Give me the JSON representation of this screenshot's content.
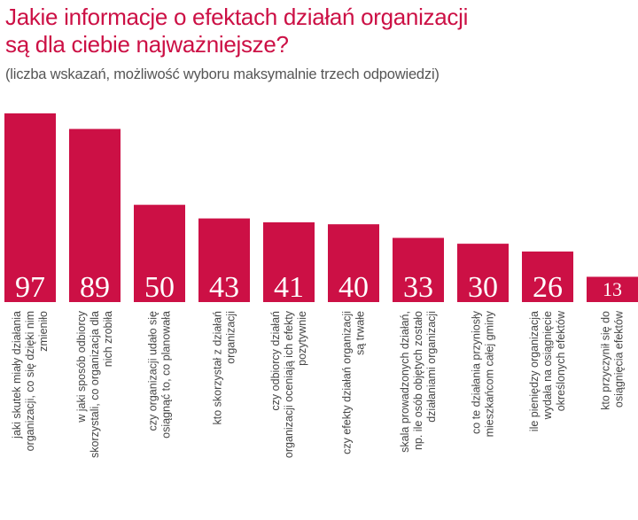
{
  "chart_data": {
    "type": "bar",
    "title": "Jakie informacje o efektach działań organizacji są dla ciebie najważniejsze?",
    "title_lines": [
      "Jakie informacje o efektach działań organizacji",
      "są dla ciebie najważniejsze?"
    ],
    "subtitle": "(liczba wskazań, możliwość wyboru maksymalnie trzech odpowiedzi)",
    "xlabel": "",
    "ylabel": "",
    "ylim": [
      0,
      100
    ],
    "grid": false,
    "legend": "none",
    "bar_color": "#cc1045",
    "categories": [
      [
        "jaki skutek miały działania",
        "organizacji, co się dzięki nim",
        "zmieniło"
      ],
      [
        "w jaki sposób odbiorcy",
        "skorzystali, co organizacja dla",
        "nich zrobiła"
      ],
      [
        "czy organizacji udało się",
        "osiągnąć to, co planowała"
      ],
      [
        "kto skorzystał z działań",
        "organizacji"
      ],
      [
        "czy odbiorcy działań",
        "organizacji oceniają ich efekty",
        "pozytywnie"
      ],
      [
        "czy efekty działań organizacji",
        "są trwałe"
      ],
      [
        "skala prowadzonych działań,",
        "np. ile osób objętych zostało",
        "działaniami organizacji"
      ],
      [
        "co te działania przyniosły",
        "mieszkańcom całej gminy"
      ],
      [
        "ile pieniędzy organizacja",
        "wydała na osiągnięcie",
        "określonych efektów"
      ],
      [
        "kto przyczynił się do",
        "osiągnięcia efektów"
      ]
    ],
    "values": [
      97,
      89,
      50,
      43,
      41,
      40,
      33,
      30,
      26,
      13
    ]
  }
}
